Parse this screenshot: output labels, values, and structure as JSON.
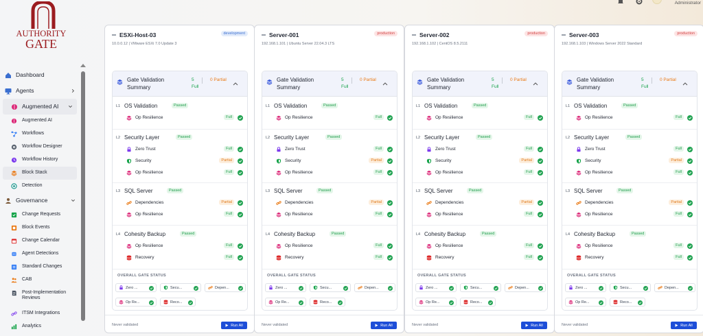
{
  "brand": {
    "line1": "AUTHORITY",
    "line2": "GATE"
  },
  "topbar": {
    "user_role": "Administrator"
  },
  "nav": [
    {
      "label": "Dashboard",
      "icon": "home-icon",
      "level": "top",
      "color": "#3b6fd0"
    },
    {
      "label": "Agents",
      "icon": "monitor-icon",
      "level": "top",
      "color": "#3b6fd0",
      "chevron": "right"
    },
    {
      "label": "Augmented AI",
      "icon": "brain-icon",
      "level": "top",
      "color": "#db2777",
      "chevron": "down",
      "active": true
    },
    {
      "label": "Augmented AI",
      "icon": "brain-icon",
      "level": "sub",
      "color": "#db2777"
    },
    {
      "label": "Workflows",
      "icon": "workflow-icon",
      "level": "sub",
      "color": "#3b82f6"
    },
    {
      "label": "Workflow Designer",
      "icon": "cog-icon",
      "level": "sub",
      "color": "#4b5563"
    },
    {
      "label": "Workflow History",
      "icon": "history-icon",
      "level": "sub",
      "color": "#7c3aed"
    },
    {
      "label": "Block Stack",
      "icon": "layers-icon",
      "level": "sub",
      "color": "#ea7a16",
      "active": true
    },
    {
      "label": "Detection",
      "icon": "radar-icon",
      "level": "sub",
      "color": "#0d9488"
    },
    {
      "label": "Governance",
      "icon": "governance-icon",
      "level": "top",
      "color": "#7c5a3a",
      "chevron": "down"
    },
    {
      "label": "Change Requests",
      "icon": "checklist-icon",
      "level": "sub",
      "color": "#16a34a"
    },
    {
      "label": "Block Events",
      "icon": "block-events-icon",
      "level": "sub",
      "color": "#ea7a16"
    },
    {
      "label": "Change Calendar",
      "icon": "calendar-icon",
      "level": "sub",
      "color": "#dc2626"
    },
    {
      "label": "Agent Detections",
      "icon": "agent-icon",
      "level": "sub",
      "color": "#3b82f6"
    },
    {
      "label": "Standard Changes",
      "icon": "standard-icon",
      "level": "sub",
      "color": "#3b82f6"
    },
    {
      "label": "CAB",
      "icon": "people-icon",
      "level": "sub",
      "color": "#ea7a16"
    },
    {
      "label": "Post-Implementation Reviews",
      "icon": "document-icon",
      "level": "sub",
      "color": "#4b5563",
      "tall": true
    },
    {
      "label": "ITSM Integrations",
      "icon": "link-icon",
      "level": "sub",
      "color": "#7c3aed"
    },
    {
      "label": "Analytics",
      "icon": "analytics-icon",
      "level": "sub",
      "color": "#16a34a"
    }
  ],
  "columns": [
    {
      "host": "ESXi-Host-03",
      "env": "development",
      "subtitle": "10.0.0.12 | VMware ESXi 7.0 Update 3",
      "summary": {
        "title": "Gate Validation Summary",
        "full": "5 Full",
        "partial": "0 Partial"
      },
      "layers": [
        {
          "level": "L1",
          "name": "OS Validation",
          "status": "Passed",
          "rows": [
            {
              "label": "Op Resilience",
              "icon": "op-resilience-icon",
              "badge": "Full"
            }
          ]
        },
        {
          "level": "L2",
          "name": "Security Layer",
          "status": "Passed",
          "rows": [
            {
              "label": "Zero Trust",
              "icon": "lock-icon",
              "badge": "Full"
            },
            {
              "label": "Security",
              "icon": "shield-icon",
              "badge": "Partial"
            },
            {
              "label": "Op Resilience",
              "icon": "op-resilience-icon",
              "badge": "Full"
            }
          ]
        },
        {
          "level": "L3",
          "name": "SQL Server",
          "status": "Passed",
          "rows": [
            {
              "label": "Dependencies",
              "icon": "dependencies-icon",
              "badge": "Partial"
            },
            {
              "label": "Op Resilience",
              "icon": "op-resilience-icon",
              "badge": "Full"
            }
          ]
        },
        {
          "level": "L4",
          "name": "Cohesity Backup",
          "status": "Passed",
          "rows": [
            {
              "label": "Op Resilience",
              "icon": "op-resilience-icon",
              "badge": "Full"
            },
            {
              "label": "Recovery",
              "icon": "recovery-icon",
              "badge": "Full"
            }
          ]
        }
      ],
      "overall_label": "OVERALL GATE STATUS",
      "chips": [
        {
          "label": "Zero ...",
          "icon": "lock-icon"
        },
        {
          "label": "Secu...",
          "icon": "shield-icon"
        },
        {
          "label": "Depen...",
          "icon": "dependencies-icon"
        },
        {
          "label": "Op Re...",
          "icon": "op-resilience-icon"
        },
        {
          "label": "Reco...",
          "icon": "recovery-icon"
        }
      ],
      "footer": {
        "status": "Never validated",
        "run_label": "Run All"
      }
    },
    {
      "host": "Server-001",
      "env": "production",
      "subtitle": "192.168.1.101 | Ubuntu Server 22.04.3 LTS",
      "summary": {
        "title": "Gate Validation Summary",
        "full": "5 Full",
        "partial": "0 Partial"
      },
      "layers": [
        {
          "level": "L1",
          "name": "OS Validation",
          "status": "Passed",
          "rows": [
            {
              "label": "Op Resilience",
              "icon": "op-resilience-icon",
              "badge": "Full"
            }
          ]
        },
        {
          "level": "L2",
          "name": "Security Layer",
          "status": "Passed",
          "rows": [
            {
              "label": "Zero Trust",
              "icon": "lock-icon",
              "badge": "Full"
            },
            {
              "label": "Security",
              "icon": "shield-icon",
              "badge": "Partial"
            },
            {
              "label": "Op Resilience",
              "icon": "op-resilience-icon",
              "badge": "Full"
            }
          ]
        },
        {
          "level": "L3",
          "name": "SQL Server",
          "status": "Passed",
          "rows": [
            {
              "label": "Dependencies",
              "icon": "dependencies-icon",
              "badge": "Partial"
            },
            {
              "label": "Op Resilience",
              "icon": "op-resilience-icon",
              "badge": "Full"
            }
          ]
        },
        {
          "level": "L4",
          "name": "Cohesity Backup",
          "status": "Passed",
          "rows": [
            {
              "label": "Op Resilience",
              "icon": "op-resilience-icon",
              "badge": "Full"
            },
            {
              "label": "Recovery",
              "icon": "recovery-icon",
              "badge": "Full"
            }
          ]
        }
      ],
      "overall_label": "OVERALL GATE STATUS",
      "chips": [
        {
          "label": "Zero ...",
          "icon": "lock-icon"
        },
        {
          "label": "Secu...",
          "icon": "shield-icon"
        },
        {
          "label": "Depen...",
          "icon": "dependencies-icon"
        },
        {
          "label": "Op Re...",
          "icon": "op-resilience-icon"
        },
        {
          "label": "Reco...",
          "icon": "recovery-icon"
        }
      ],
      "footer": {
        "status": "Never validated",
        "run_label": "Run All"
      }
    },
    {
      "host": "Server-002",
      "env": "production",
      "subtitle": "192.168.1.102 | CentOS 8.5.2111",
      "summary": {
        "title": "Gate Validation Summary",
        "full": "5 Full",
        "partial": "0 Partial"
      },
      "layers": [
        {
          "level": "L1",
          "name": "OS Validation",
          "status": "Passed",
          "rows": [
            {
              "label": "Op Resilience",
              "icon": "op-resilience-icon",
              "badge": "Full"
            }
          ]
        },
        {
          "level": "L2",
          "name": "Security Layer",
          "status": "Passed",
          "rows": [
            {
              "label": "Zero Trust",
              "icon": "lock-icon",
              "badge": "Full"
            },
            {
              "label": "Security",
              "icon": "shield-icon",
              "badge": "Partial"
            },
            {
              "label": "Op Resilience",
              "icon": "op-resilience-icon",
              "badge": "Full"
            }
          ]
        },
        {
          "level": "L3",
          "name": "SQL Server",
          "status": "Passed",
          "rows": [
            {
              "label": "Dependencies",
              "icon": "dependencies-icon",
              "badge": "Partial"
            },
            {
              "label": "Op Resilience",
              "icon": "op-resilience-icon",
              "badge": "Full"
            }
          ]
        },
        {
          "level": "L4",
          "name": "Cohesity Backup",
          "status": "Passed",
          "rows": [
            {
              "label": "Op Resilience",
              "icon": "op-resilience-icon",
              "badge": "Full"
            },
            {
              "label": "Recovery",
              "icon": "recovery-icon",
              "badge": "Full"
            }
          ]
        }
      ],
      "overall_label": "OVERALL GATE STATUS",
      "chips": [
        {
          "label": "Zero ...",
          "icon": "lock-icon"
        },
        {
          "label": "Secu...",
          "icon": "shield-icon"
        },
        {
          "label": "Depen...",
          "icon": "dependencies-icon"
        },
        {
          "label": "Op Re...",
          "icon": "op-resilience-icon"
        },
        {
          "label": "Reco...",
          "icon": "recovery-icon"
        }
      ],
      "footer": {
        "status": "Never validated",
        "run_label": "Run All"
      }
    },
    {
      "host": "Server-003",
      "env": "production",
      "subtitle": "192.168.1.103 | Windows Server 2022 Standard",
      "summary": {
        "title": "Gate Validation Summary",
        "full": "5 Full",
        "partial": "0 Partial"
      },
      "layers": [
        {
          "level": "L1",
          "name": "OS Validation",
          "status": "Passed",
          "rows": [
            {
              "label": "Op Resilience",
              "icon": "op-resilience-icon",
              "badge": "Full"
            }
          ]
        },
        {
          "level": "L2",
          "name": "Security Layer",
          "status": "Passed",
          "rows": [
            {
              "label": "Zero Trust",
              "icon": "lock-icon",
              "badge": "Full"
            },
            {
              "label": "Security",
              "icon": "shield-icon",
              "badge": "Partial"
            },
            {
              "label": "Op Resilience",
              "icon": "op-resilience-icon",
              "badge": "Full"
            }
          ]
        },
        {
          "level": "L3",
          "name": "SQL Server",
          "status": "Passed",
          "rows": [
            {
              "label": "Dependencies",
              "icon": "dependencies-icon",
              "badge": "Partial"
            },
            {
              "label": "Op Resilience",
              "icon": "op-resilience-icon",
              "badge": "Full"
            }
          ]
        },
        {
          "level": "L4",
          "name": "Cohesity Backup",
          "status": "Passed",
          "rows": [
            {
              "label": "Op Resilience",
              "icon": "op-resilience-icon",
              "badge": "Full"
            },
            {
              "label": "Recovery",
              "icon": "recovery-icon",
              "badge": "Full"
            }
          ]
        }
      ],
      "overall_label": "OVERALL GATE STATUS",
      "chips": [
        {
          "label": "Zero ...",
          "icon": "lock-icon"
        },
        {
          "label": "Secu...",
          "icon": "shield-icon"
        },
        {
          "label": "Depen...",
          "icon": "dependencies-icon"
        },
        {
          "label": "Op Re...",
          "icon": "op-resilience-icon"
        },
        {
          "label": "Reco...",
          "icon": "recovery-icon"
        }
      ],
      "footer": {
        "status": "Never validated",
        "run_label": "Run All"
      }
    }
  ]
}
